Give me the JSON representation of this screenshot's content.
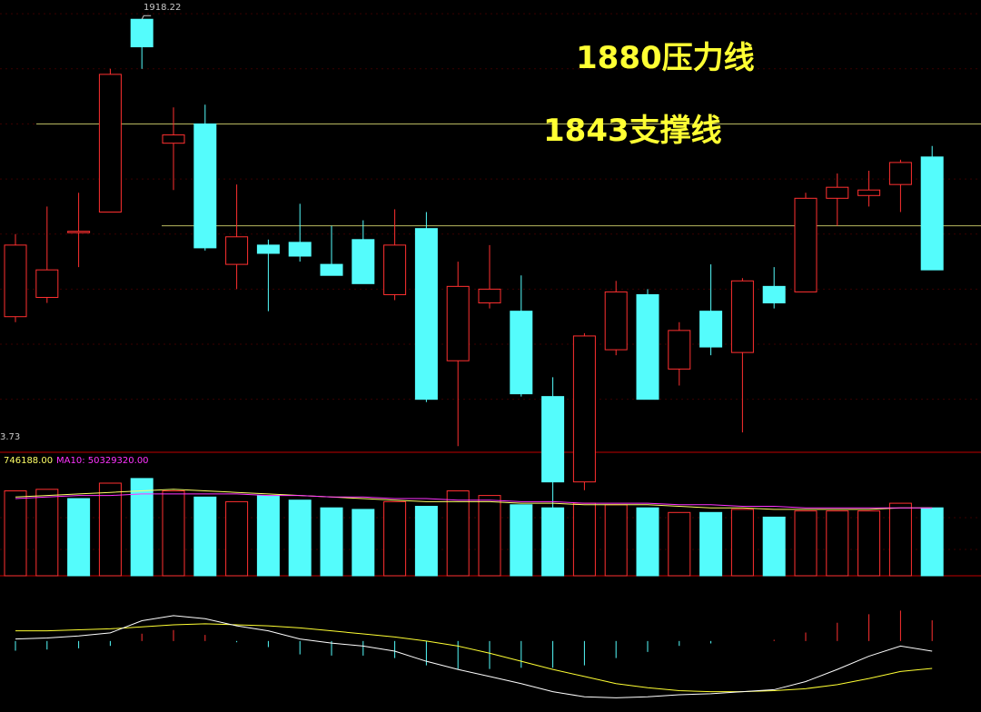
{
  "chart_data": {
    "type": "candlestick",
    "price_ylim": [
      1770,
      1925
    ],
    "volume_ylim": [
      0,
      70000000
    ],
    "high_label": "1918.22",
    "left_value_label": "3.73",
    "annotations": [
      {
        "text": "1880压力线",
        "y": 1880
      },
      {
        "text": "1843支撑线",
        "y": 1843
      }
    ],
    "candles": [
      {
        "o": 1836,
        "c": 1810,
        "h": 1840,
        "l": 1808,
        "up": true
      },
      {
        "o": 1827,
        "c": 1817,
        "h": 1850,
        "l": 1815,
        "up": true
      },
      {
        "o": 1841,
        "c": 1841,
        "h": 1855,
        "l": 1828,
        "up": true
      },
      {
        "o": 1848,
        "c": 1898,
        "h": 1900,
        "l": 1848,
        "up": true
      },
      {
        "o": 1908,
        "c": 1918,
        "h": 1918,
        "l": 1900,
        "up": false
      },
      {
        "o": 1873,
        "c": 1876,
        "h": 1886,
        "l": 1856,
        "up": true
      },
      {
        "o": 1880,
        "c": 1835,
        "h": 1887,
        "l": 1834,
        "up": false
      },
      {
        "o": 1839,
        "c": 1829,
        "h": 1858,
        "l": 1820,
        "up": true
      },
      {
        "o": 1836,
        "c": 1833,
        "h": 1838,
        "l": 1812,
        "up": false
      },
      {
        "o": 1837,
        "c": 1832,
        "h": 1851,
        "l": 1830,
        "up": false
      },
      {
        "o": 1829,
        "c": 1825,
        "h": 1843,
        "l": 1825,
        "up": false
      },
      {
        "o": 1838,
        "c": 1822,
        "h": 1845,
        "l": 1822,
        "up": false
      },
      {
        "o": 1818,
        "c": 1836,
        "h": 1849,
        "l": 1816,
        "up": true
      },
      {
        "o": 1842,
        "c": 1780,
        "h": 1848,
        "l": 1779,
        "up": false
      },
      {
        "o": 1794,
        "c": 1821,
        "h": 1830,
        "l": 1763,
        "up": true
      },
      {
        "o": 1815,
        "c": 1820,
        "h": 1836,
        "l": 1813,
        "up": true
      },
      {
        "o": 1812,
        "c": 1782,
        "h": 1825,
        "l": 1781,
        "up": false
      },
      {
        "o": 1781,
        "c": 1750,
        "h": 1788,
        "l": 1728,
        "up": false
      },
      {
        "o": 1750,
        "c": 1803,
        "h": 1804,
        "l": 1747,
        "up": true
      },
      {
        "o": 1798,
        "c": 1819,
        "h": 1823,
        "l": 1796,
        "up": true
      },
      {
        "o": 1818,
        "c": 1780,
        "h": 1820,
        "l": 1780,
        "up": false
      },
      {
        "o": 1791,
        "c": 1805,
        "h": 1808,
        "l": 1785,
        "up": true
      },
      {
        "o": 1812,
        "c": 1799,
        "h": 1829,
        "l": 1796,
        "up": false
      },
      {
        "o": 1797,
        "c": 1823,
        "h": 1824,
        "l": 1768,
        "up": true
      },
      {
        "o": 1821,
        "c": 1815,
        "h": 1828,
        "l": 1813,
        "up": false
      },
      {
        "o": 1819,
        "c": 1853,
        "h": 1855,
        "l": 1819,
        "up": true
      },
      {
        "o": 1853,
        "c": 1857,
        "h": 1862,
        "l": 1843,
        "up": true
      },
      {
        "o": 1854,
        "c": 1856,
        "h": 1863,
        "l": 1850,
        "up": true
      },
      {
        "o": 1858,
        "c": 1866,
        "h": 1867,
        "l": 1848,
        "up": true
      },
      {
        "o": 1868,
        "c": 1827,
        "h": 1872,
        "l": 1827,
        "up": false
      }
    ],
    "volume": {
      "ma5_label": "746188.00",
      "ma10_label": "MA10: 50329320.00",
      "bars": [
        {
          "v": 55000000,
          "up": true
        },
        {
          "v": 56000000,
          "up": true
        },
        {
          "v": 50000000,
          "up": false
        },
        {
          "v": 60000000,
          "up": true
        },
        {
          "v": 63000000,
          "up": false
        },
        {
          "v": 55000000,
          "up": true
        },
        {
          "v": 51000000,
          "up": false
        },
        {
          "v": 48000000,
          "up": true
        },
        {
          "v": 52000000,
          "up": false
        },
        {
          "v": 49000000,
          "up": false
        },
        {
          "v": 44000000,
          "up": false
        },
        {
          "v": 43000000,
          "up": false
        },
        {
          "v": 48000000,
          "up": true
        },
        {
          "v": 45000000,
          "up": false
        },
        {
          "v": 55000000,
          "up": true
        },
        {
          "v": 52000000,
          "up": true
        },
        {
          "v": 46000000,
          "up": false
        },
        {
          "v": 44000000,
          "up": false
        },
        {
          "v": 47000000,
          "up": true
        },
        {
          "v": 46000000,
          "up": true
        },
        {
          "v": 44000000,
          "up": false
        },
        {
          "v": 41000000,
          "up": true
        },
        {
          "v": 41000000,
          "up": false
        },
        {
          "v": 43000000,
          "up": true
        },
        {
          "v": 38000000,
          "up": false
        },
        {
          "v": 42000000,
          "up": true
        },
        {
          "v": 42000000,
          "up": true
        },
        {
          "v": 42000000,
          "up": true
        },
        {
          "v": 47000000,
          "up": true
        },
        {
          "v": 44000000,
          "up": false
        }
      ],
      "ma5": [
        51,
        52,
        53,
        54,
        55,
        56,
        55,
        54,
        53,
        52,
        51,
        50,
        49,
        48,
        48,
        48,
        47,
        47,
        46,
        46,
        46,
        45,
        44,
        44,
        43,
        43,
        43,
        43,
        44,
        44
      ],
      "ma10": [
        50,
        51,
        52,
        52,
        53,
        53,
        53,
        53,
        52,
        52,
        51,
        51,
        50,
        50,
        49,
        49,
        48,
        48,
        47,
        47,
        47,
        46,
        46,
        45,
        45,
        44,
        44,
        44,
        44,
        44
      ]
    },
    "macd": {
      "dif": [
        0.02,
        0.03,
        0.05,
        0.08,
        0.2,
        0.25,
        0.22,
        0.15,
        0.1,
        0.02,
        -0.02,
        -0.05,
        -0.1,
        -0.2,
        -0.28,
        -0.35,
        -0.42,
        -0.5,
        -0.55,
        -0.56,
        -0.55,
        -0.53,
        -0.52,
        -0.5,
        -0.48,
        -0.4,
        -0.28,
        -0.15,
        -0.05,
        -0.1
      ],
      "dea": [
        0.1,
        0.1,
        0.11,
        0.12,
        0.14,
        0.16,
        0.17,
        0.16,
        0.15,
        0.13,
        0.1,
        0.07,
        0.04,
        0.0,
        -0.05,
        -0.12,
        -0.2,
        -0.28,
        -0.35,
        -0.42,
        -0.46,
        -0.49,
        -0.5,
        -0.5,
        -0.49,
        -0.47,
        -0.43,
        -0.37,
        -0.3,
        -0.27
      ],
      "ylim": [
        -0.7,
        0.5
      ]
    },
    "colors": {
      "up": "#ff3030",
      "down": "#54fcfc",
      "grid": "#3a0000",
      "axis": "#c00000",
      "annotation": "#ffff33",
      "line": "#b8b860",
      "dif": "#ffffff",
      "dea": "#ffff33",
      "ma5": "#ffff66",
      "ma10": "#ff33ff"
    }
  }
}
